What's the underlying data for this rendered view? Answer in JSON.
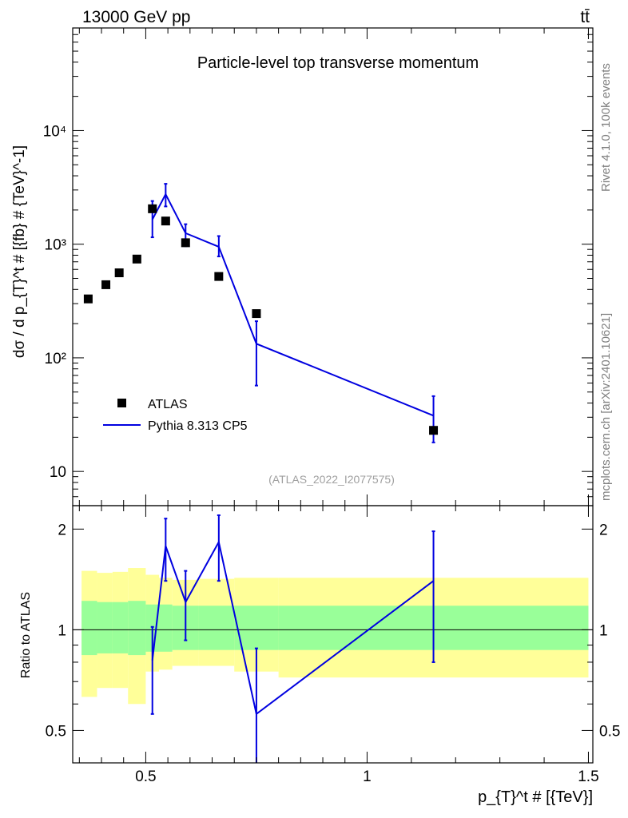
{
  "header": {
    "energy_label": "13000 GeV pp",
    "process_label": "tt̄"
  },
  "side": {
    "rivet_label": "Rivet 4.1.0,  100k events",
    "mcplots_label": "mcplots.cern.ch [arXiv:2401.10621]"
  },
  "colors": {
    "mc_line": "#0000e0",
    "data_marker": "#000000",
    "band_outer": "#ffff99",
    "band_inner": "#99ff99"
  },
  "chart_data": [
    {
      "type": "scatter",
      "panel": "main",
      "title": "Particle-level top transverse momentum",
      "ylabel": "dσ / d p_{T}^t # [{fb} # {TeV}^-1]",
      "analysis_label": "(ATLAS_2022_I2077575)",
      "yscale": "log",
      "xlim": [
        0.335,
        1.51
      ],
      "ylim": [
        5,
        80000
      ],
      "y_ticks": [
        {
          "value": 10,
          "label": "10"
        },
        {
          "value": 100,
          "label": "10²"
        },
        {
          "value": 1000,
          "label": "10³"
        },
        {
          "value": 10000,
          "label": "10⁴"
        }
      ],
      "legend_position": "bottom-left",
      "series": [
        {
          "name": "ATLAS",
          "style": "markers",
          "x": [
            0.37,
            0.41,
            0.44,
            0.48,
            0.515,
            0.545,
            0.59,
            0.665,
            0.75,
            1.15
          ],
          "y": [
            330,
            440,
            560,
            740,
            2050,
            1600,
            1030,
            520,
            245,
            23
          ]
        },
        {
          "name": "Pythia 8.313 CP5",
          "style": "line",
          "x": [
            0.515,
            0.545,
            0.59,
            0.665,
            0.75,
            1.15
          ],
          "y": [
            1650,
            2750,
            1250,
            950,
            133,
            31
          ],
          "y_low": [
            1150,
            2150,
            960,
            780,
            57,
            18
          ],
          "y_high": [
            2400,
            3400,
            1500,
            1180,
            210,
            46
          ]
        }
      ]
    },
    {
      "type": "line",
      "panel": "ratio",
      "ylabel": "Ratio to ATLAS",
      "xlabel": "p_{T}^t # [{TeV}]",
      "yscale": "log",
      "xlim": [
        0.335,
        1.51
      ],
      "ylim": [
        0.4,
        2.35
      ],
      "x_ticks": [
        {
          "value": 0.5,
          "label": "0.5"
        },
        {
          "value": 1,
          "label": "1"
        },
        {
          "value": 1.5,
          "label": "1.5"
        }
      ],
      "y_ticks": [
        {
          "value": 0.5,
          "label": "0.5"
        },
        {
          "value": 1,
          "label": "1"
        },
        {
          "value": 2,
          "label": "2"
        }
      ],
      "data_band": {
        "bins": [
          0.355,
          0.39,
          0.425,
          0.46,
          0.5,
          0.53,
          0.56,
          0.62,
          0.7,
          0.8,
          1.5
        ],
        "outer_low": [
          0.63,
          0.67,
          0.67,
          0.6,
          0.75,
          0.76,
          0.78,
          0.78,
          0.75,
          0.72
        ],
        "outer_high": [
          1.5,
          1.48,
          1.49,
          1.53,
          1.46,
          1.43,
          1.41,
          1.42,
          1.43,
          1.43
        ],
        "inner_low": [
          0.84,
          0.85,
          0.85,
          0.84,
          0.86,
          0.86,
          0.87,
          0.87,
          0.87,
          0.87
        ],
        "inner_high": [
          1.22,
          1.21,
          1.21,
          1.22,
          1.19,
          1.19,
          1.18,
          1.18,
          1.18,
          1.18
        ]
      },
      "series": [
        {
          "name": "Pythia 8.313 CP5",
          "x": [
            0.515,
            0.545,
            0.59,
            0.665,
            0.75,
            1.15
          ],
          "y": [
            0.81,
            1.78,
            1.21,
            1.83,
            0.56,
            1.4
          ],
          "y_low": [
            0.56,
            1.4,
            0.93,
            1.4,
            0.4,
            0.8
          ],
          "y_high": [
            1.02,
            2.15,
            1.5,
            2.2,
            0.88,
            1.97
          ]
        }
      ]
    }
  ]
}
